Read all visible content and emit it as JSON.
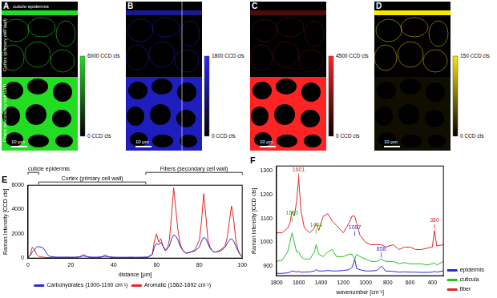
{
  "image_panels": [
    {
      "label": "A",
      "color": "#22dd22",
      "colorbar_ticks": [
        {
          "value": 6000,
          "label": "6000 CCD cts"
        },
        {
          "value": 0,
          "label": "0 CCD cts"
        }
      ],
      "scale_bar": "10 µm",
      "annotations": [
        {
          "text": "cuticle epidermis",
          "region": "epidermis"
        },
        {
          "text": "Cortex (primary cell wall)",
          "region": "cortex"
        },
        {
          "text": "Fibers (secondary cell wall)",
          "region": "fibers"
        }
      ]
    },
    {
      "label": "B",
      "color": "#2828ff",
      "colorbar_ticks": [
        {
          "value": 1800,
          "label": "1800 CCD cts"
        },
        {
          "value": 0,
          "label": "0 CCD cts"
        }
      ],
      "scale_bar": "10 µm",
      "annotations": []
    },
    {
      "label": "C",
      "color": "#ff2424",
      "colorbar_ticks": [
        {
          "value": 4500,
          "label": "4500 CCD cts"
        },
        {
          "value": 0,
          "label": "0 CCD cts"
        }
      ],
      "scale_bar": "10 µm",
      "annotations": []
    },
    {
      "label": "D",
      "color": "#ffe600",
      "colorbar_ticks": [
        {
          "value": 150,
          "label": "150 CCD cts"
        },
        {
          "value": 0,
          "label": "0 CCD cts"
        }
      ],
      "scale_bar": "10 µm",
      "annotations": []
    }
  ],
  "chart_data": [
    {
      "type": "line",
      "title": "E",
      "x_label": "distance [µm]",
      "y_label": "Raman Intensity [CCD cts]",
      "x": [
        0,
        1,
        2,
        3,
        4,
        5,
        6,
        7,
        8,
        9,
        10,
        12,
        14,
        16,
        18,
        20,
        22,
        24,
        26,
        28,
        30,
        32,
        34,
        36,
        38,
        40,
        42,
        44,
        46,
        48,
        50,
        52,
        54,
        56,
        58,
        59,
        60,
        61,
        62,
        63,
        64,
        65,
        66,
        67,
        68,
        69,
        70,
        71,
        72,
        73,
        74,
        76,
        78,
        80,
        81,
        82,
        83,
        84,
        85,
        86,
        87,
        88,
        90,
        92,
        93,
        94,
        95,
        96,
        97,
        98,
        99,
        100
      ],
      "series": [
        {
          "name": "Carbohydrates (1000-1190 cm⁻¹)",
          "color": "#2b2bd6",
          "values": [
            50,
            200,
            500,
            700,
            900,
            950,
            900,
            850,
            600,
            300,
            150,
            100,
            80,
            80,
            80,
            80,
            80,
            100,
            180,
            100,
            80,
            80,
            100,
            150,
            100,
            80,
            70,
            70,
            70,
            80,
            70,
            70,
            80,
            100,
            300,
            900,
            1200,
            1100,
            1300,
            1000,
            700,
            800,
            1000,
            1600,
            1900,
            1800,
            1500,
            1000,
            700,
            500,
            400,
            500,
            600,
            900,
            1400,
            1700,
            1600,
            1200,
            800,
            600,
            500,
            500,
            600,
            900,
            1200,
            1500,
            1600,
            1400,
            1000,
            600,
            300,
            100
          ]
        },
        {
          "name": "Aromatic (1562-1692 cm⁻¹)",
          "color": "#e02828",
          "values": [
            100,
            300,
            900,
            700,
            300,
            150,
            100,
            80,
            60,
            50,
            40,
            30,
            40,
            50,
            60,
            40,
            30,
            100,
            300,
            80,
            40,
            30,
            60,
            250,
            80,
            40,
            30,
            30,
            30,
            40,
            30,
            30,
            40,
            60,
            300,
            1400,
            2000,
            1300,
            1600,
            1000,
            600,
            700,
            1500,
            3500,
            5800,
            4000,
            2300,
            1200,
            700,
            500,
            400,
            500,
            700,
            1500,
            3000,
            5300,
            3500,
            1500,
            900,
            600,
            500,
            500,
            700,
            1000,
            1700,
            3000,
            4300,
            3200,
            1500,
            700,
            300,
            100
          ]
        }
      ],
      "xlim": [
        0,
        100
      ],
      "xticks": [
        0,
        20,
        40,
        60,
        80,
        100
      ],
      "ylim": [
        0,
        6000
      ],
      "yticks": [
        0,
        2000,
        4000,
        6000
      ],
      "grid": false,
      "legend": "bottom",
      "annotations": [
        {
          "text": "cuticle epidermis",
          "x_range": [
            0,
            5
          ]
        },
        {
          "text": "Cortex (primary cell wall)",
          "x_range": [
            5,
            55
          ]
        },
        {
          "text": "Fibers (secondary cell wall)",
          "x_range": [
            55,
            100
          ]
        }
      ]
    },
    {
      "type": "line",
      "title": "F",
      "x_label": "wavenumber [cm⁻¹]",
      "y_label": "Raman Intensity [CCD cts]",
      "x": [
        1800,
        1750,
        1700,
        1680,
        1660,
        1640,
        1620,
        1601,
        1580,
        1550,
        1500,
        1460,
        1444,
        1420,
        1380,
        1340,
        1300,
        1260,
        1200,
        1150,
        1120,
        1097,
        1080,
        1050,
        1000,
        950,
        900,
        858,
        820,
        750,
        700,
        650,
        600,
        550,
        500,
        450,
        400,
        380,
        360,
        300
      ],
      "series": [
        {
          "name": "epidermis",
          "color": "#2b2bd6",
          "values": [
            870,
            870,
            872,
            875,
            880,
            878,
            876,
            878,
            875,
            875,
            876,
            880,
            885,
            880,
            880,
            882,
            880,
            880,
            882,
            885,
            895,
            930,
            890,
            885,
            880,
            880,
            882,
            900,
            880,
            878,
            875,
            876,
            875,
            875,
            874,
            874,
            875,
            878,
            875,
            880
          ]
        },
        {
          "name": "cuticula",
          "color": "#22c022",
          "values": [
            920,
            925,
            960,
            1000,
            1040,
            1000,
            960,
            960,
            940,
            930,
            930,
            960,
            990,
            950,
            940,
            960,
            970,
            940,
            940,
            950,
            950,
            930,
            950,
            940,
            930,
            920,
            920,
            930,
            920,
            920,
            910,
            915,
            910,
            910,
            910,
            905,
            910,
            915,
            905,
            920
          ]
        },
        {
          "name": "fiber",
          "color": "#e02828",
          "values": [
            1040,
            1040,
            1060,
            1080,
            1130,
            1110,
            1170,
            1270,
            1130,
            1060,
            1040,
            1060,
            1080,
            1050,
            1110,
            1120,
            1090,
            1070,
            1040,
            1080,
            1110,
            1110,
            1080,
            1030,
            1000,
            990,
            990,
            990,
            980,
            990,
            970,
            980,
            980,
            970,
            970,
            975,
            980,
            1050,
            985,
            990
          ]
        }
      ],
      "xlim": [
        1800,
        300
      ],
      "xticks": [
        1800,
        1600,
        1400,
        1200,
        1000,
        800,
        600,
        400
      ],
      "ylim": [
        860,
        1320
      ],
      "yticks": [
        900,
        1000,
        1100,
        1200,
        1300
      ],
      "grid": false,
      "legend": "lower right",
      "annotations": [
        {
          "text": "1601",
          "x": 1601,
          "y": 1292,
          "color": "#e02828"
        },
        {
          "text": "1660",
          "x": 1660,
          "y": 1110,
          "color": "#22c022"
        },
        {
          "text": "1444",
          "x": 1444,
          "y": 1060,
          "color": "#22c022"
        },
        {
          "text": "1097",
          "x": 1097,
          "y": 1050,
          "color": "#2b2bd6"
        },
        {
          "text": "858",
          "x": 858,
          "y": 960,
          "color": "#2b2bd6"
        },
        {
          "text": "380",
          "x": 380,
          "y": 1080,
          "color": "#e02828"
        }
      ]
    }
  ]
}
